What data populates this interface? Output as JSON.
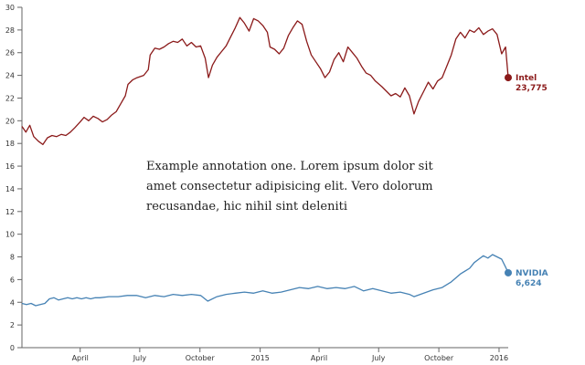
{
  "chart_data": {
    "type": "line",
    "title": "",
    "xlabel": "",
    "ylabel": "",
    "ylim": [
      0,
      30
    ],
    "yticks": [
      0,
      2,
      4,
      6,
      8,
      10,
      12,
      14,
      16,
      18,
      20,
      22,
      24,
      26,
      28,
      30
    ],
    "xlim": [
      "2014-01-02",
      "2016-01-15"
    ],
    "xticks": [
      {
        "date": "2014-04-01",
        "label": "April"
      },
      {
        "date": "2014-07-01",
        "label": "July"
      },
      {
        "date": "2014-10-01",
        "label": "October"
      },
      {
        "date": "2015-01-01",
        "label": "2015"
      },
      {
        "date": "2015-04-01",
        "label": "April"
      },
      {
        "date": "2015-07-01",
        "label": "July"
      },
      {
        "date": "2015-10-01",
        "label": "October"
      },
      {
        "date": "2016-01-01",
        "label": "2016"
      }
    ],
    "grid": false,
    "series": [
      {
        "name": "Intel",
        "end_label": "23,775",
        "color": "#8b1a1a",
        "points": [
          [
            "2014-01-02",
            19.5
          ],
          [
            "2014-01-08",
            19.0
          ],
          [
            "2014-01-14",
            19.6
          ],
          [
            "2014-01-20",
            18.6
          ],
          [
            "2014-01-27",
            18.2
          ],
          [
            "2014-02-03",
            17.9
          ],
          [
            "2014-02-10",
            18.5
          ],
          [
            "2014-02-17",
            18.7
          ],
          [
            "2014-02-24",
            18.6
          ],
          [
            "2014-03-03",
            18.8
          ],
          [
            "2014-03-10",
            18.7
          ],
          [
            "2014-03-17",
            19.0
          ],
          [
            "2014-03-24",
            19.4
          ],
          [
            "2014-04-01",
            19.9
          ],
          [
            "2014-04-07",
            20.3
          ],
          [
            "2014-04-14",
            20.0
          ],
          [
            "2014-04-21",
            20.4
          ],
          [
            "2014-04-28",
            20.2
          ],
          [
            "2014-05-05",
            19.9
          ],
          [
            "2014-05-12",
            20.1
          ],
          [
            "2014-05-19",
            20.5
          ],
          [
            "2014-05-26",
            20.8
          ],
          [
            "2014-06-02",
            21.5
          ],
          [
            "2014-06-09",
            22.2
          ],
          [
            "2014-06-13",
            23.2
          ],
          [
            "2014-06-20",
            23.6
          ],
          [
            "2014-06-27",
            23.8
          ],
          [
            "2014-07-07",
            24.0
          ],
          [
            "2014-07-14",
            24.5
          ],
          [
            "2014-07-17",
            25.8
          ],
          [
            "2014-07-24",
            26.4
          ],
          [
            "2014-07-31",
            26.3
          ],
          [
            "2014-08-07",
            26.5
          ],
          [
            "2014-08-14",
            26.8
          ],
          [
            "2014-08-21",
            27.0
          ],
          [
            "2014-08-28",
            26.9
          ],
          [
            "2014-09-04",
            27.2
          ],
          [
            "2014-09-11",
            26.6
          ],
          [
            "2014-09-18",
            26.9
          ],
          [
            "2014-09-25",
            26.5
          ],
          [
            "2014-10-02",
            26.6
          ],
          [
            "2014-10-09",
            25.5
          ],
          [
            "2014-10-14",
            23.8
          ],
          [
            "2014-10-20",
            24.9
          ],
          [
            "2014-10-27",
            25.6
          ],
          [
            "2014-11-03",
            26.1
          ],
          [
            "2014-11-10",
            26.6
          ],
          [
            "2014-11-17",
            27.4
          ],
          [
            "2014-11-24",
            28.2
          ],
          [
            "2014-12-01",
            29.1
          ],
          [
            "2014-12-08",
            28.6
          ],
          [
            "2014-12-15",
            27.9
          ],
          [
            "2014-12-22",
            29.0
          ],
          [
            "2014-12-29",
            28.8
          ],
          [
            "2015-01-05",
            28.4
          ],
          [
            "2015-01-12",
            27.8
          ],
          [
            "2015-01-16",
            26.5
          ],
          [
            "2015-01-23",
            26.3
          ],
          [
            "2015-01-30",
            25.9
          ],
          [
            "2015-02-06",
            26.4
          ],
          [
            "2015-02-13",
            27.5
          ],
          [
            "2015-02-20",
            28.2
          ],
          [
            "2015-02-27",
            28.8
          ],
          [
            "2015-03-06",
            28.5
          ],
          [
            "2015-03-13",
            27.0
          ],
          [
            "2015-03-20",
            25.8
          ],
          [
            "2015-03-27",
            25.2
          ],
          [
            "2015-04-03",
            24.6
          ],
          [
            "2015-04-10",
            23.8
          ],
          [
            "2015-04-17",
            24.3
          ],
          [
            "2015-04-24",
            25.4
          ],
          [
            "2015-05-01",
            26.0
          ],
          [
            "2015-05-08",
            25.2
          ],
          [
            "2015-05-15",
            26.5
          ],
          [
            "2015-05-22",
            26.0
          ],
          [
            "2015-05-29",
            25.5
          ],
          [
            "2015-06-05",
            24.8
          ],
          [
            "2015-06-12",
            24.2
          ],
          [
            "2015-06-19",
            24.0
          ],
          [
            "2015-06-26",
            23.5
          ],
          [
            "2015-07-06",
            23.0
          ],
          [
            "2015-07-13",
            22.6
          ],
          [
            "2015-07-20",
            22.2
          ],
          [
            "2015-07-27",
            22.4
          ],
          [
            "2015-08-03",
            22.1
          ],
          [
            "2015-08-10",
            22.9
          ],
          [
            "2015-08-17",
            22.2
          ],
          [
            "2015-08-24",
            20.6
          ],
          [
            "2015-08-31",
            21.7
          ],
          [
            "2015-09-08",
            22.6
          ],
          [
            "2015-09-15",
            23.4
          ],
          [
            "2015-09-22",
            22.8
          ],
          [
            "2015-09-29",
            23.5
          ],
          [
            "2015-10-06",
            23.8
          ],
          [
            "2015-10-13",
            24.8
          ],
          [
            "2015-10-20",
            25.8
          ],
          [
            "2015-10-27",
            27.2
          ],
          [
            "2015-11-03",
            27.8
          ],
          [
            "2015-11-10",
            27.3
          ],
          [
            "2015-11-17",
            28.0
          ],
          [
            "2015-11-24",
            27.8
          ],
          [
            "2015-12-01",
            28.2
          ],
          [
            "2015-12-08",
            27.6
          ],
          [
            "2015-12-15",
            27.9
          ],
          [
            "2015-12-22",
            28.1
          ],
          [
            "2015-12-29",
            27.6
          ],
          [
            "2016-01-05",
            25.9
          ],
          [
            "2016-01-11",
            26.5
          ],
          [
            "2016-01-15",
            23.8
          ]
        ]
      },
      {
        "name": "NVIDIA",
        "end_label": "6,624",
        "color": "#4682b4",
        "points": [
          [
            "2014-01-02",
            3.9
          ],
          [
            "2014-01-09",
            3.8
          ],
          [
            "2014-01-16",
            3.9
          ],
          [
            "2014-01-23",
            3.7
          ],
          [
            "2014-01-30",
            3.8
          ],
          [
            "2014-02-06",
            3.9
          ],
          [
            "2014-02-13",
            4.3
          ],
          [
            "2014-02-20",
            4.4
          ],
          [
            "2014-02-27",
            4.2
          ],
          [
            "2014-03-06",
            4.3
          ],
          [
            "2014-03-13",
            4.4
          ],
          [
            "2014-03-20",
            4.3
          ],
          [
            "2014-03-27",
            4.4
          ],
          [
            "2014-04-03",
            4.3
          ],
          [
            "2014-04-10",
            4.4
          ],
          [
            "2014-04-17",
            4.3
          ],
          [
            "2014-04-24",
            4.4
          ],
          [
            "2014-05-01",
            4.4
          ],
          [
            "2014-05-15",
            4.5
          ],
          [
            "2014-05-29",
            4.5
          ],
          [
            "2014-06-12",
            4.6
          ],
          [
            "2014-06-26",
            4.6
          ],
          [
            "2014-07-10",
            4.4
          ],
          [
            "2014-07-24",
            4.6
          ],
          [
            "2014-08-07",
            4.5
          ],
          [
            "2014-08-21",
            4.7
          ],
          [
            "2014-09-04",
            4.6
          ],
          [
            "2014-09-18",
            4.7
          ],
          [
            "2014-10-02",
            4.6
          ],
          [
            "2014-10-13",
            4.1
          ],
          [
            "2014-10-27",
            4.5
          ],
          [
            "2014-11-10",
            4.7
          ],
          [
            "2014-11-24",
            4.8
          ],
          [
            "2014-12-08",
            4.9
          ],
          [
            "2014-12-22",
            4.8
          ],
          [
            "2015-01-05",
            5.0
          ],
          [
            "2015-01-19",
            4.8
          ],
          [
            "2015-02-02",
            4.9
          ],
          [
            "2015-02-16",
            5.1
          ],
          [
            "2015-03-02",
            5.3
          ],
          [
            "2015-03-16",
            5.2
          ],
          [
            "2015-03-30",
            5.4
          ],
          [
            "2015-04-13",
            5.2
          ],
          [
            "2015-04-27",
            5.3
          ],
          [
            "2015-05-11",
            5.2
          ],
          [
            "2015-05-25",
            5.4
          ],
          [
            "2015-06-08",
            5.0
          ],
          [
            "2015-06-22",
            5.2
          ],
          [
            "2015-07-06",
            5.0
          ],
          [
            "2015-07-20",
            4.8
          ],
          [
            "2015-08-03",
            4.9
          ],
          [
            "2015-08-17",
            4.7
          ],
          [
            "2015-08-24",
            4.5
          ],
          [
            "2015-09-08",
            4.8
          ],
          [
            "2015-09-22",
            5.1
          ],
          [
            "2015-10-06",
            5.3
          ],
          [
            "2015-10-20",
            5.8
          ],
          [
            "2015-11-03",
            6.5
          ],
          [
            "2015-11-17",
            7.0
          ],
          [
            "2015-11-24",
            7.5
          ],
          [
            "2015-12-01",
            7.8
          ],
          [
            "2015-12-08",
            8.1
          ],
          [
            "2015-12-15",
            7.9
          ],
          [
            "2015-12-22",
            8.2
          ],
          [
            "2015-12-29",
            8.0
          ],
          [
            "2016-01-05",
            7.8
          ],
          [
            "2016-01-11",
            7.1
          ],
          [
            "2016-01-15",
            6.6
          ]
        ]
      }
    ],
    "annotations": [
      "Example annotation one. Lorem ipsum dolor sit amet consectetur adipisicing elit. Vero dolorum recusandae, hic nihil sint deleniti"
    ]
  }
}
